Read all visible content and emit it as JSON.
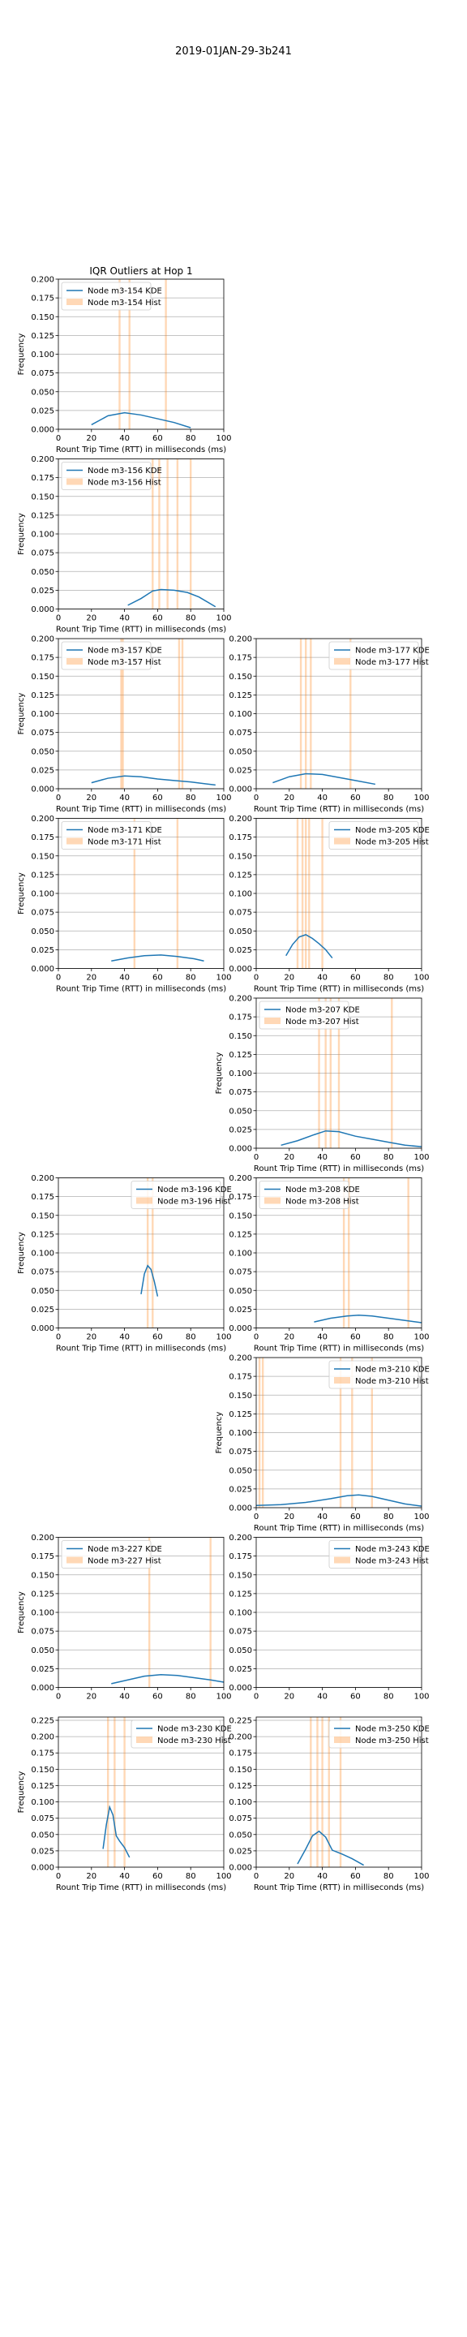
{
  "figure": {
    "suptitle": "2019-01JAN-29-3b241",
    "colors": {
      "kde": "#1f77b4",
      "hist": "#ff7f0e",
      "grid": "#b0b0b0"
    }
  },
  "chart_data": [
    {
      "slot": 0,
      "type": "line",
      "title": "IQR Outliers at Hop 1",
      "xlabel": "Rount Trip Time (RTT) in milliseconds (ms)",
      "ylabel": "Frequency",
      "xlim": [
        0,
        100
      ],
      "ylim": [
        0,
        0.2
      ],
      "xticks": [
        "0",
        "20",
        "40",
        "60",
        "80",
        "100"
      ],
      "yticks": [
        "0.000",
        "0.025",
        "0.050",
        "0.075",
        "0.100",
        "0.125",
        "0.150",
        "0.175",
        "0.200"
      ],
      "grid": "horizontal",
      "legend_position": "upper left",
      "series": [
        {
          "name": "Node m3-154 KDE",
          "kind": "kde",
          "x": [
            20,
            30,
            40,
            50,
            60,
            70,
            80
          ],
          "y": [
            0.006,
            0.018,
            0.022,
            0.019,
            0.014,
            0.009,
            0.002
          ]
        },
        {
          "name": "Node m3-154 Hist",
          "kind": "hist",
          "bars": [
            37,
            43,
            65
          ]
        }
      ]
    },
    {
      "slot": 2,
      "type": "line",
      "title": "",
      "xlabel": "Rount Trip Time (RTT) in milliseconds (ms)",
      "ylabel": "Frequency",
      "xlim": [
        0,
        100
      ],
      "ylim": [
        0,
        0.2
      ],
      "xticks": [
        "0",
        "20",
        "40",
        "60",
        "80",
        "100"
      ],
      "yticks": [
        "0.000",
        "0.025",
        "0.050",
        "0.075",
        "0.100",
        "0.125",
        "0.150",
        "0.175",
        "0.200"
      ],
      "grid": "horizontal",
      "legend_position": "upper left",
      "series": [
        {
          "name": "Node m3-156 KDE",
          "kind": "kde",
          "x": [
            42,
            50,
            57,
            62,
            70,
            78,
            85,
            95
          ],
          "y": [
            0.005,
            0.014,
            0.024,
            0.026,
            0.025,
            0.022,
            0.016,
            0.003
          ]
        },
        {
          "name": "Node m3-156 Hist",
          "kind": "hist",
          "bars": [
            57,
            61,
            66,
            72,
            80
          ]
        }
      ]
    },
    {
      "slot": 4,
      "type": "line",
      "title": "",
      "xlabel": "Rount Trip Time (RTT) in milliseconds (ms)",
      "ylabel": "Frequency",
      "xlim": [
        0,
        100
      ],
      "ylim": [
        0,
        0.2
      ],
      "xticks": [
        "0",
        "20",
        "40",
        "60",
        "80",
        "100"
      ],
      "yticks": [
        "0.000",
        "0.025",
        "0.050",
        "0.075",
        "0.100",
        "0.125",
        "0.150",
        "0.175",
        "0.200"
      ],
      "grid": "horizontal",
      "legend_position": "upper left",
      "series": [
        {
          "name": "Node m3-157 KDE",
          "kind": "kde",
          "x": [
            20,
            30,
            40,
            50,
            60,
            70,
            80,
            95
          ],
          "y": [
            0.008,
            0.014,
            0.017,
            0.016,
            0.013,
            0.011,
            0.009,
            0.005
          ]
        },
        {
          "name": "Node m3-157 Hist",
          "kind": "hist",
          "bars": [
            38,
            39,
            73,
            75
          ]
        }
      ]
    },
    {
      "slot": 5,
      "type": "line",
      "title": "",
      "xlabel": "Rount Trip Time (RTT) in milliseconds (ms)",
      "ylabel": "",
      "xlim": [
        0,
        100
      ],
      "ylim": [
        0,
        0.2
      ],
      "xticks": [
        "0",
        "20",
        "40",
        "60",
        "80",
        "100"
      ],
      "yticks": [
        "0.000",
        "0.025",
        "0.050",
        "0.075",
        "0.100",
        "0.125",
        "0.150",
        "0.175",
        "0.200"
      ],
      "grid": "horizontal",
      "legend_position": "upper right",
      "series": [
        {
          "name": "Node m3-177 KDE",
          "kind": "kde",
          "x": [
            10,
            20,
            30,
            40,
            50,
            60,
            72
          ],
          "y": [
            0.008,
            0.016,
            0.02,
            0.019,
            0.015,
            0.011,
            0.006
          ]
        },
        {
          "name": "Node m3-177 Hist",
          "kind": "hist",
          "bars": [
            27,
            30,
            33,
            57
          ]
        }
      ]
    },
    {
      "slot": 6,
      "type": "line",
      "title": "",
      "xlabel": "Rount Trip Time (RTT) in milliseconds (ms)",
      "ylabel": "Frequency",
      "xlim": [
        0,
        100
      ],
      "ylim": [
        0,
        0.2
      ],
      "xticks": [
        "0",
        "20",
        "40",
        "60",
        "80",
        "100"
      ],
      "yticks": [
        "0.000",
        "0.025",
        "0.050",
        "0.075",
        "0.100",
        "0.125",
        "0.150",
        "0.175",
        "0.200"
      ],
      "grid": "horizontal",
      "legend_position": "upper left",
      "series": [
        {
          "name": "Node m3-171 KDE",
          "kind": "kde",
          "x": [
            32,
            42,
            52,
            62,
            72,
            82,
            88
          ],
          "y": [
            0.01,
            0.014,
            0.017,
            0.018,
            0.016,
            0.013,
            0.01
          ]
        },
        {
          "name": "Node m3-171 Hist",
          "kind": "hist",
          "bars": [
            46,
            72
          ]
        }
      ]
    },
    {
      "slot": 7,
      "type": "line",
      "title": "",
      "xlabel": "Rount Trip Time (RTT) in milliseconds (ms)",
      "ylabel": "",
      "xlim": [
        0,
        100
      ],
      "ylim": [
        0,
        0.2
      ],
      "xticks": [
        "0",
        "20",
        "40",
        "60",
        "80",
        "100"
      ],
      "yticks": [
        "0.000",
        "0.025",
        "0.050",
        "0.075",
        "0.100",
        "0.125",
        "0.150",
        "0.175",
        "0.200"
      ],
      "grid": "horizontal",
      "legend_position": "upper right",
      "series": [
        {
          "name": "Node m3-205 KDE",
          "kind": "kde",
          "x": [
            18,
            22,
            26,
            30,
            34,
            38,
            42,
            46
          ],
          "y": [
            0.017,
            0.032,
            0.042,
            0.045,
            0.04,
            0.033,
            0.025,
            0.014
          ]
        },
        {
          "name": "Node m3-205 Hist",
          "kind": "hist",
          "bars": [
            25,
            28,
            30,
            32,
            40
          ]
        }
      ]
    },
    {
      "slot": 9,
      "type": "line",
      "title": "",
      "xlabel": "Rount Trip Time (RTT) in milliseconds (ms)",
      "ylabel": "Frequency",
      "xlim": [
        0,
        100
      ],
      "ylim": [
        0,
        0.2
      ],
      "xticks": [
        "0",
        "20",
        "40",
        "60",
        "80",
        "100"
      ],
      "yticks": [
        "0.000",
        "0.025",
        "0.050",
        "0.075",
        "0.100",
        "0.125",
        "0.150",
        "0.175",
        "0.200"
      ],
      "grid": "horizontal",
      "legend_position": "upper left",
      "series": [
        {
          "name": "Node m3-207 KDE",
          "kind": "kde",
          "x": [
            15,
            25,
            35,
            42,
            50,
            60,
            70,
            80,
            90,
            100
          ],
          "y": [
            0.004,
            0.01,
            0.018,
            0.023,
            0.022,
            0.016,
            0.012,
            0.008,
            0.004,
            0.002
          ]
        },
        {
          "name": "Node m3-207 Hist",
          "kind": "hist",
          "bars": [
            38,
            42,
            45,
            50,
            82
          ]
        }
      ]
    },
    {
      "slot": 10,
      "type": "line",
      "title": "",
      "xlabel": "Rount Trip Time (RTT) in milliseconds (ms)",
      "ylabel": "Frequency",
      "xlim": [
        0,
        100
      ],
      "ylim": [
        0,
        0.2
      ],
      "xticks": [
        "0",
        "20",
        "40",
        "60",
        "80",
        "100"
      ],
      "yticks": [
        "0.000",
        "0.025",
        "0.050",
        "0.075",
        "0.100",
        "0.125",
        "0.150",
        "0.175",
        "0.200"
      ],
      "grid": "horizontal",
      "legend_position": "upper right",
      "series": [
        {
          "name": "Node m3-196 KDE",
          "kind": "kde",
          "x": [
            50,
            52,
            54,
            56,
            58,
            60
          ],
          "y": [
            0.045,
            0.072,
            0.083,
            0.078,
            0.062,
            0.042
          ]
        },
        {
          "name": "Node m3-196 Hist",
          "kind": "hist",
          "bars": [
            54,
            57
          ]
        }
      ]
    },
    {
      "slot": 11,
      "type": "line",
      "title": "",
      "xlabel": "Rount Trip Time (RTT) in milliseconds (ms)",
      "ylabel": "",
      "xlim": [
        0,
        100
      ],
      "ylim": [
        0,
        0.2
      ],
      "xticks": [
        "0",
        "20",
        "40",
        "60",
        "80",
        "100"
      ],
      "yticks": [
        "0.000",
        "0.025",
        "0.050",
        "0.075",
        "0.100",
        "0.125",
        "0.150",
        "0.175",
        "0.200"
      ],
      "grid": "horizontal",
      "legend_position": "upper left",
      "series": [
        {
          "name": "Node m3-208 KDE",
          "kind": "kde",
          "x": [
            35,
            45,
            55,
            62,
            70,
            80,
            90,
            100
          ],
          "y": [
            0.008,
            0.013,
            0.016,
            0.017,
            0.016,
            0.013,
            0.01,
            0.007
          ]
        },
        {
          "name": "Node m3-208 Hist",
          "kind": "hist",
          "bars": [
            53,
            56,
            92
          ]
        }
      ]
    },
    {
      "slot": 13,
      "type": "line",
      "title": "",
      "xlabel": "Rount Trip Time (RTT) in milliseconds (ms)",
      "ylabel": "Frequency",
      "xlim": [
        0,
        100
      ],
      "ylim": [
        0,
        0.2
      ],
      "xticks": [
        "0",
        "20",
        "40",
        "60",
        "80",
        "100"
      ],
      "yticks": [
        "0.000",
        "0.025",
        "0.050",
        "0.075",
        "0.100",
        "0.125",
        "0.150",
        "0.175",
        "0.200"
      ],
      "grid": "horizontal",
      "legend_position": "upper right",
      "series": [
        {
          "name": "Node m3-210 KDE",
          "kind": "kde",
          "x": [
            0,
            15,
            30,
            45,
            55,
            62,
            70,
            80,
            90,
            100
          ],
          "y": [
            0.003,
            0.004,
            0.007,
            0.012,
            0.016,
            0.017,
            0.015,
            0.01,
            0.005,
            0.002
          ]
        },
        {
          "name": "Node m3-210 Hist",
          "kind": "hist",
          "bars": [
            2,
            4,
            51,
            58,
            70
          ]
        }
      ]
    },
    {
      "slot": 14,
      "type": "line",
      "title": "",
      "xlabel": "",
      "ylabel": "Frequency",
      "xlim": [
        0,
        100
      ],
      "ylim": [
        0,
        0.2
      ],
      "xticks": [
        "0",
        "20",
        "40",
        "60",
        "80",
        "100"
      ],
      "yticks": [
        "0.000",
        "0.025",
        "0.050",
        "0.075",
        "0.100",
        "0.125",
        "0.150",
        "0.175",
        "0.200"
      ],
      "grid": "horizontal",
      "legend_position": "upper left",
      "series": [
        {
          "name": "Node m3-227 KDE",
          "kind": "kde",
          "x": [
            32,
            42,
            52,
            62,
            72,
            82,
            92,
            100
          ],
          "y": [
            0.005,
            0.01,
            0.015,
            0.017,
            0.016,
            0.013,
            0.01,
            0.007
          ]
        },
        {
          "name": "Node m3-227 Hist",
          "kind": "hist",
          "bars": [
            55,
            92
          ]
        }
      ]
    },
    {
      "slot": 15,
      "type": "line",
      "title": "",
      "xlabel": "",
      "ylabel": "",
      "xlim": [
        0,
        100
      ],
      "ylim": [
        0,
        0.2
      ],
      "xticks": [
        "0",
        "20",
        "40",
        "60",
        "80",
        "100"
      ],
      "yticks": [
        "0.000",
        "0.025",
        "0.050",
        "0.075",
        "0.100",
        "0.125",
        "0.150",
        "0.175",
        "0.200"
      ],
      "grid": "horizontal",
      "legend_position": "upper right",
      "series": [
        {
          "name": "Node m3-243 KDE",
          "kind": "kde",
          "x": [],
          "y": []
        },
        {
          "name": "Node m3-243 Hist",
          "kind": "hist",
          "bars": []
        }
      ]
    },
    {
      "slot": 16,
      "type": "line",
      "title": "",
      "xlabel": "Rount Trip Time (RTT) in milliseconds (ms)",
      "ylabel": "Frequency",
      "xlim": [
        0,
        100
      ],
      "ylim": [
        0,
        0.23
      ],
      "xticks": [
        "0",
        "20",
        "40",
        "60",
        "80",
        "100"
      ],
      "yticks": [
        "0.000",
        "0.025",
        "0.050",
        "0.075",
        "0.100",
        "0.125",
        "0.150",
        "0.175",
        "0.200",
        "0.225"
      ],
      "grid": "horizontal",
      "legend_position": "upper right",
      "series": [
        {
          "name": "Node m3-230 KDE",
          "kind": "kde",
          "x": [
            27,
            29,
            31,
            33,
            35,
            37,
            40,
            43
          ],
          "y": [
            0.028,
            0.065,
            0.092,
            0.08,
            0.048,
            0.04,
            0.03,
            0.015
          ]
        },
        {
          "name": "Node m3-230 Hist",
          "kind": "hist",
          "bars": [
            30,
            34,
            40
          ]
        }
      ]
    },
    {
      "slot": 17,
      "type": "line",
      "title": "",
      "xlabel": "Rount Trip Time (RTT) in milliseconds (ms)",
      "ylabel": "",
      "xlim": [
        0,
        100
      ],
      "ylim": [
        0,
        0.23
      ],
      "xticks": [
        "0",
        "20",
        "40",
        "60",
        "80",
        "100"
      ],
      "yticks": [
        "0.000",
        "0.025",
        "0.050",
        "0.075",
        "0.100",
        "0.125",
        "0.150",
        "0.175",
        "0.200",
        "0.225"
      ],
      "grid": "horizontal",
      "legend_position": "upper right",
      "series": [
        {
          "name": "Node m3-250 KDE",
          "kind": "kde",
          "x": [
            25,
            30,
            34,
            38,
            42,
            46,
            52,
            58,
            65
          ],
          "y": [
            0.005,
            0.028,
            0.048,
            0.055,
            0.046,
            0.026,
            0.02,
            0.013,
            0.003
          ]
        },
        {
          "name": "Node m3-250 Hist",
          "kind": "hist",
          "bars": [
            33,
            37,
            40,
            44,
            51
          ]
        }
      ]
    }
  ]
}
